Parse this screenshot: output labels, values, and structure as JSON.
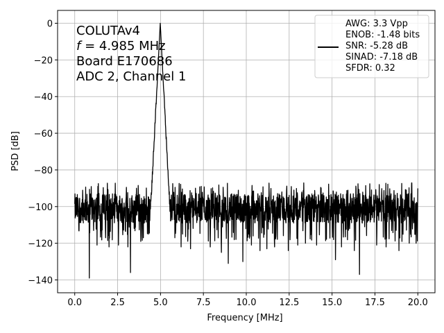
{
  "chart_data": {
    "type": "line",
    "xlabel": "Frequency [MHz]",
    "ylabel": "PSD [dB]",
    "xlim": [
      -1.0,
      21.0
    ],
    "ylim": [
      -147,
      7
    ],
    "xticks": [
      0.0,
      2.5,
      5.0,
      7.5,
      10.0,
      12.5,
      15.0,
      17.5,
      20.0
    ],
    "xtick_labels": [
      "0.0",
      "2.5",
      "5.0",
      "7.5",
      "10.0",
      "12.5",
      "15.0",
      "17.5",
      "20.0"
    ],
    "yticks": [
      0,
      -20,
      -40,
      -60,
      -80,
      -100,
      -120,
      -140
    ],
    "ytick_labels": [
      "0",
      "−20",
      "−40",
      "−60",
      "−80",
      "−100",
      "−120",
      "−140"
    ],
    "grid": true,
    "line_color": "#000000",
    "annotation": {
      "line1": "COLUTAv4",
      "line2_var": "f",
      "line2_rest": " = 4.985 MHz",
      "line3": "Board E170686",
      "line4": "ADC 2, Channel 1"
    },
    "legend": {
      "placement": "top-right",
      "lines": [
        "AWG: 3.3 Vpp",
        "ENOB: -1.48 bits",
        "SNR: -5.28 dB",
        "SINAD: -7.18 dB",
        "SFDR: 0.32"
      ]
    },
    "series": [
      {
        "peak_frequency": 4.985,
        "peak_value": 0,
        "noise_floor": -101,
        "noise_spikes": [
          {
            "x": 0.85,
            "y": -139
          },
          {
            "x": 3.25,
            "y": -136
          },
          {
            "x": 1.3,
            "y": -121
          },
          {
            "x": 2.0,
            "y": -122
          },
          {
            "x": 2.55,
            "y": -121
          },
          {
            "x": 3.1,
            "y": -122
          },
          {
            "x": 3.85,
            "y": -119
          },
          {
            "x": 4.0,
            "y": -117
          },
          {
            "x": 4.3,
            "y": -115
          },
          {
            "x": 6.2,
            "y": -122
          },
          {
            "x": 6.75,
            "y": -123
          },
          {
            "x": 7.9,
            "y": -122
          },
          {
            "x": 8.95,
            "y": -131
          },
          {
            "x": 8.55,
            "y": -125
          },
          {
            "x": 9.8,
            "y": -130
          },
          {
            "x": 10.3,
            "y": -121
          },
          {
            "x": 10.8,
            "y": -124
          },
          {
            "x": 11.2,
            "y": -123
          },
          {
            "x": 11.65,
            "y": -122
          },
          {
            "x": 12.45,
            "y": -124
          },
          {
            "x": 13.0,
            "y": -121
          },
          {
            "x": 13.45,
            "y": -120
          },
          {
            "x": 14.1,
            "y": -121
          },
          {
            "x": 15.2,
            "y": -129
          },
          {
            "x": 15.55,
            "y": -122
          },
          {
            "x": 16.3,
            "y": -124
          },
          {
            "x": 16.6,
            "y": -137
          },
          {
            "x": 17.6,
            "y": -121
          },
          {
            "x": 18.15,
            "y": -122
          },
          {
            "x": 18.9,
            "y": -124
          },
          {
            "x": 19.5,
            "y": -120
          },
          {
            "x": 19.9,
            "y": -120
          }
        ]
      }
    ]
  }
}
